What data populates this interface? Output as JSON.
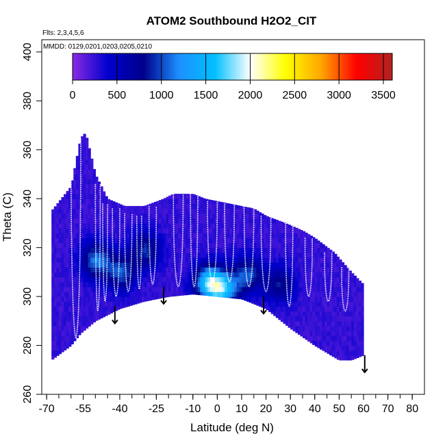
{
  "chart_data": {
    "type": "heatmap",
    "title": "ATOM2 Southbound H2O2_CIT",
    "flights_note": "Flts: 2,3,4,5,6",
    "dates_note": "MMDD: 0129,0201,0203,0205,0210",
    "xlabel": "Latitude (deg N)",
    "ylabel": "Theta (C)",
    "xlim": [
      -72,
      85
    ],
    "ylim": [
      260,
      405
    ],
    "x_ticks": [
      -70,
      -55,
      -40,
      -25,
      -10,
      0,
      10,
      20,
      30,
      40,
      50,
      60,
      70,
      80
    ],
    "x_tick_labels": [
      "-70",
      "-55",
      "-40",
      "-25",
      "-10",
      "0",
      "10",
      "20",
      "30",
      "40",
      "50",
      "60",
      "70",
      "80"
    ],
    "x_minor_step": 5,
    "y_ticks": [
      260,
      280,
      300,
      320,
      340,
      360,
      380,
      400
    ],
    "y_tick_labels": [
      "260",
      "280",
      "300",
      "320",
      "340",
      "360",
      "380",
      "400"
    ],
    "colorbar": {
      "range": [
        0,
        3600
      ],
      "ticks": [
        0,
        500,
        1000,
        1500,
        2000,
        2500,
        3000,
        3500
      ],
      "tick_labels": [
        "0",
        "500",
        "1000",
        "1500",
        "2000",
        "2500",
        "3000",
        "3500"
      ],
      "colors": [
        "#8a2be2",
        "#0000cd",
        "#00008b",
        "#1e90ff",
        "#00bfff",
        "#ffffff",
        "#ffff00",
        "#ffa500",
        "#ff0000",
        "#b22222"
      ]
    },
    "coverage_envelope": {
      "top": [
        [
          -68,
          335
        ],
        [
          -60,
          345
        ],
        [
          -56,
          365
        ],
        [
          -54,
          367
        ],
        [
          -50,
          350
        ],
        [
          -45,
          340
        ],
        [
          -38,
          337
        ],
        [
          -30,
          337
        ],
        [
          -22,
          340
        ],
        [
          -18,
          342
        ],
        [
          -10,
          342
        ],
        [
          -5,
          340
        ],
        [
          5,
          338
        ],
        [
          15,
          336
        ],
        [
          20,
          333
        ],
        [
          28,
          330
        ],
        [
          35,
          327
        ],
        [
          40,
          324
        ],
        [
          48,
          318
        ],
        [
          55,
          310
        ],
        [
          60,
          305
        ]
      ],
      "bottom": [
        [
          -68,
          274
        ],
        [
          -60,
          280
        ],
        [
          -56,
          285
        ],
        [
          -50,
          290
        ],
        [
          -40,
          295
        ],
        [
          -30,
          298
        ],
        [
          -20,
          300
        ],
        [
          -10,
          301
        ],
        [
          0,
          300
        ],
        [
          10,
          299
        ],
        [
          20,
          295
        ],
        [
          30,
          287
        ],
        [
          40,
          280
        ],
        [
          50,
          274
        ],
        [
          55,
          274
        ],
        [
          60,
          276
        ]
      ]
    },
    "background_value": 250,
    "enhancements": [
      {
        "lat": -4,
        "theta": 305,
        "value": 1300
      },
      {
        "lat": 2,
        "theta": 302,
        "value": 1200
      },
      {
        "lat": -50,
        "theta": 314,
        "value": 900
      },
      {
        "lat": -40,
        "theta": 309,
        "value": 800
      },
      {
        "lat": -30,
        "theta": 318,
        "value": 700
      },
      {
        "lat": 12,
        "theta": 308,
        "value": 800
      },
      {
        "lat": 25,
        "theta": 304,
        "value": 600
      }
    ],
    "flight_profiles": [
      {
        "lat_start": -60,
        "lat_end": -56,
        "theta_top": 365,
        "theta_bottom": 283
      },
      {
        "lat_start": -50,
        "lat_end": -48,
        "theta_top": 346,
        "theta_bottom": 294
      },
      {
        "lat_start": -47,
        "lat_end": -45,
        "theta_top": 338,
        "theta_bottom": 298
      },
      {
        "lat_start": -43,
        "lat_end": -40,
        "theta_top": 336,
        "theta_bottom": 300
      },
      {
        "lat_start": -38,
        "lat_end": -35,
        "theta_top": 334,
        "theta_bottom": 302
      },
      {
        "lat_start": -33,
        "lat_end": -31,
        "theta_top": 333,
        "theta_bottom": 303
      },
      {
        "lat_start": -28,
        "lat_end": -25,
        "theta_top": 337,
        "theta_bottom": 305
      },
      {
        "lat_start": -18,
        "lat_end": -14,
        "theta_top": 342,
        "theta_bottom": 304
      },
      {
        "lat_start": -11,
        "lat_end": -8,
        "theta_top": 342,
        "theta_bottom": 304
      },
      {
        "lat_start": -4,
        "lat_end": 0,
        "theta_top": 339,
        "theta_bottom": 306
      },
      {
        "lat_start": 3,
        "lat_end": 7,
        "theta_top": 338,
        "theta_bottom": 306
      },
      {
        "lat_start": 11,
        "lat_end": 15,
        "theta_top": 337,
        "theta_bottom": 304
      },
      {
        "lat_start": 18,
        "lat_end": 22,
        "theta_top": 333,
        "theta_bottom": 302
      },
      {
        "lat_start": 28,
        "lat_end": 31,
        "theta_top": 330,
        "theta_bottom": 296
      },
      {
        "lat_start": 36,
        "lat_end": 39,
        "theta_top": 324,
        "theta_bottom": 300
      },
      {
        "lat_start": 44,
        "lat_end": 47,
        "theta_top": 318,
        "theta_bottom": 298
      },
      {
        "lat_start": 51,
        "lat_end": 54,
        "theta_top": 312,
        "theta_bottom": 294
      }
    ],
    "arrows": [
      {
        "lat": -42,
        "theta_top": 296,
        "theta_bottom": 289
      },
      {
        "lat": -22,
        "theta_top": 304,
        "theta_bottom": 297
      },
      {
        "lat": 19,
        "theta_top": 300,
        "theta_bottom": 293
      },
      {
        "lat": 60.5,
        "theta_top": 276,
        "theta_bottom": 269
      }
    ]
  }
}
